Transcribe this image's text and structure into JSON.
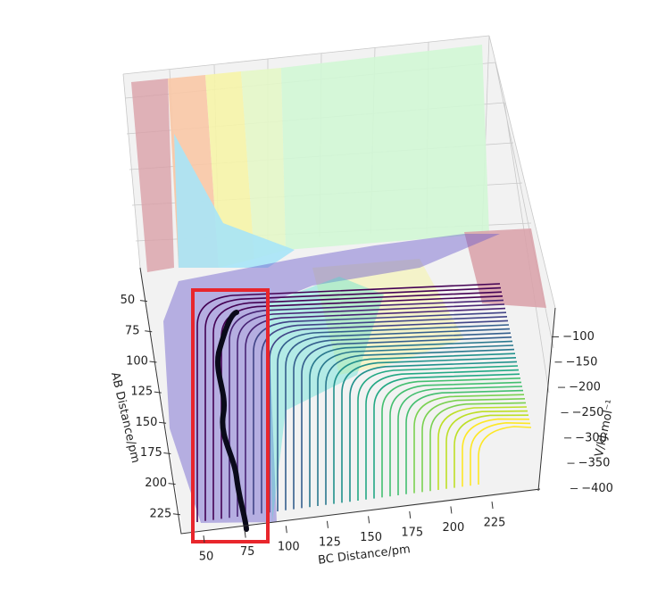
{
  "chart_data": {
    "type": "surface3d",
    "xlabel": "BC Distance/pm",
    "ylabel": "AB Distance/pm",
    "zlabel": "V/kJ.mol⁻¹",
    "xlim": [
      35,
      252
    ],
    "xticks": [
      50,
      75,
      100,
      125,
      150,
      175,
      200,
      225
    ],
    "ylim": [
      21,
      242
    ],
    "yticks": [
      50,
      75,
      100,
      125,
      150,
      175,
      200,
      225
    ],
    "zlim": [
      -405,
      -40
    ],
    "zticks": [
      {
        "value": -100,
        "label": "−100"
      },
      {
        "value": -150,
        "label": "−150"
      },
      {
        "value": -200,
        "label": "−200"
      },
      {
        "value": -250,
        "label": "−250"
      },
      {
        "value": -300,
        "label": "−300"
      },
      {
        "value": -350,
        "label": "−350"
      },
      {
        "value": -400,
        "label": "−400"
      }
    ]
  }
}
